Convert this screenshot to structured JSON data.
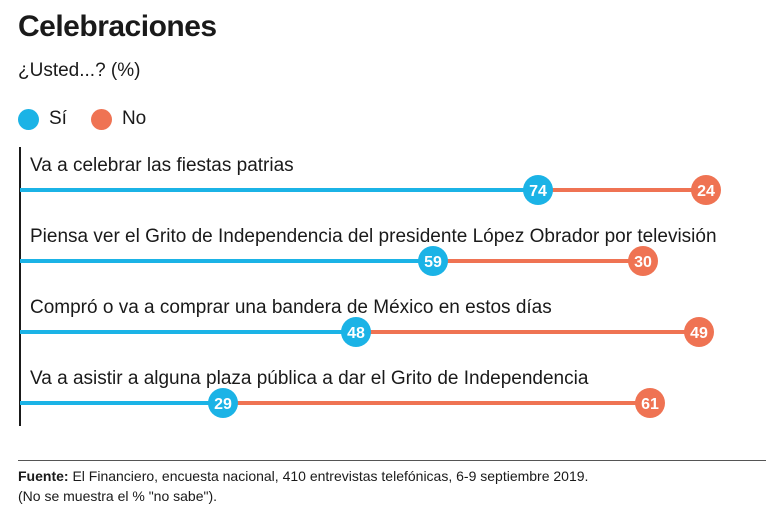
{
  "title": "Celebraciones",
  "subtitle": "¿Usted...? (%)",
  "legend": [
    {
      "label": "Sí",
      "color": "#1bb3e6"
    },
    {
      "label": "No",
      "color": "#ef7353"
    }
  ],
  "chart_data": {
    "type": "bar",
    "categories": [
      "Va a celebrar las fiestas patrias",
      "Piensa ver el Grito de Independencia del presidente López Obrador por televisión",
      "Compró o va a comprar una bandera de México en estos días",
      "Va a asistir a alguna plaza pública a dar el Grito de Independencia"
    ],
    "series": [
      {
        "name": "Sí",
        "values": [
          74,
          59,
          48,
          29
        ],
        "color": "#1bb3e6"
      },
      {
        "name": "No",
        "values": [
          24,
          30,
          49,
          61
        ],
        "color": "#ef7353"
      }
    ],
    "stacked": true,
    "xlim": [
      0,
      100
    ]
  },
  "footer": {
    "label": "Fuente:",
    "source": " El Financiero, encuesta nacional, 410 entrevistas telefónicas, 6-9 septiembre 2019.",
    "note": "(No se muestra el % \"no sabe\")."
  }
}
